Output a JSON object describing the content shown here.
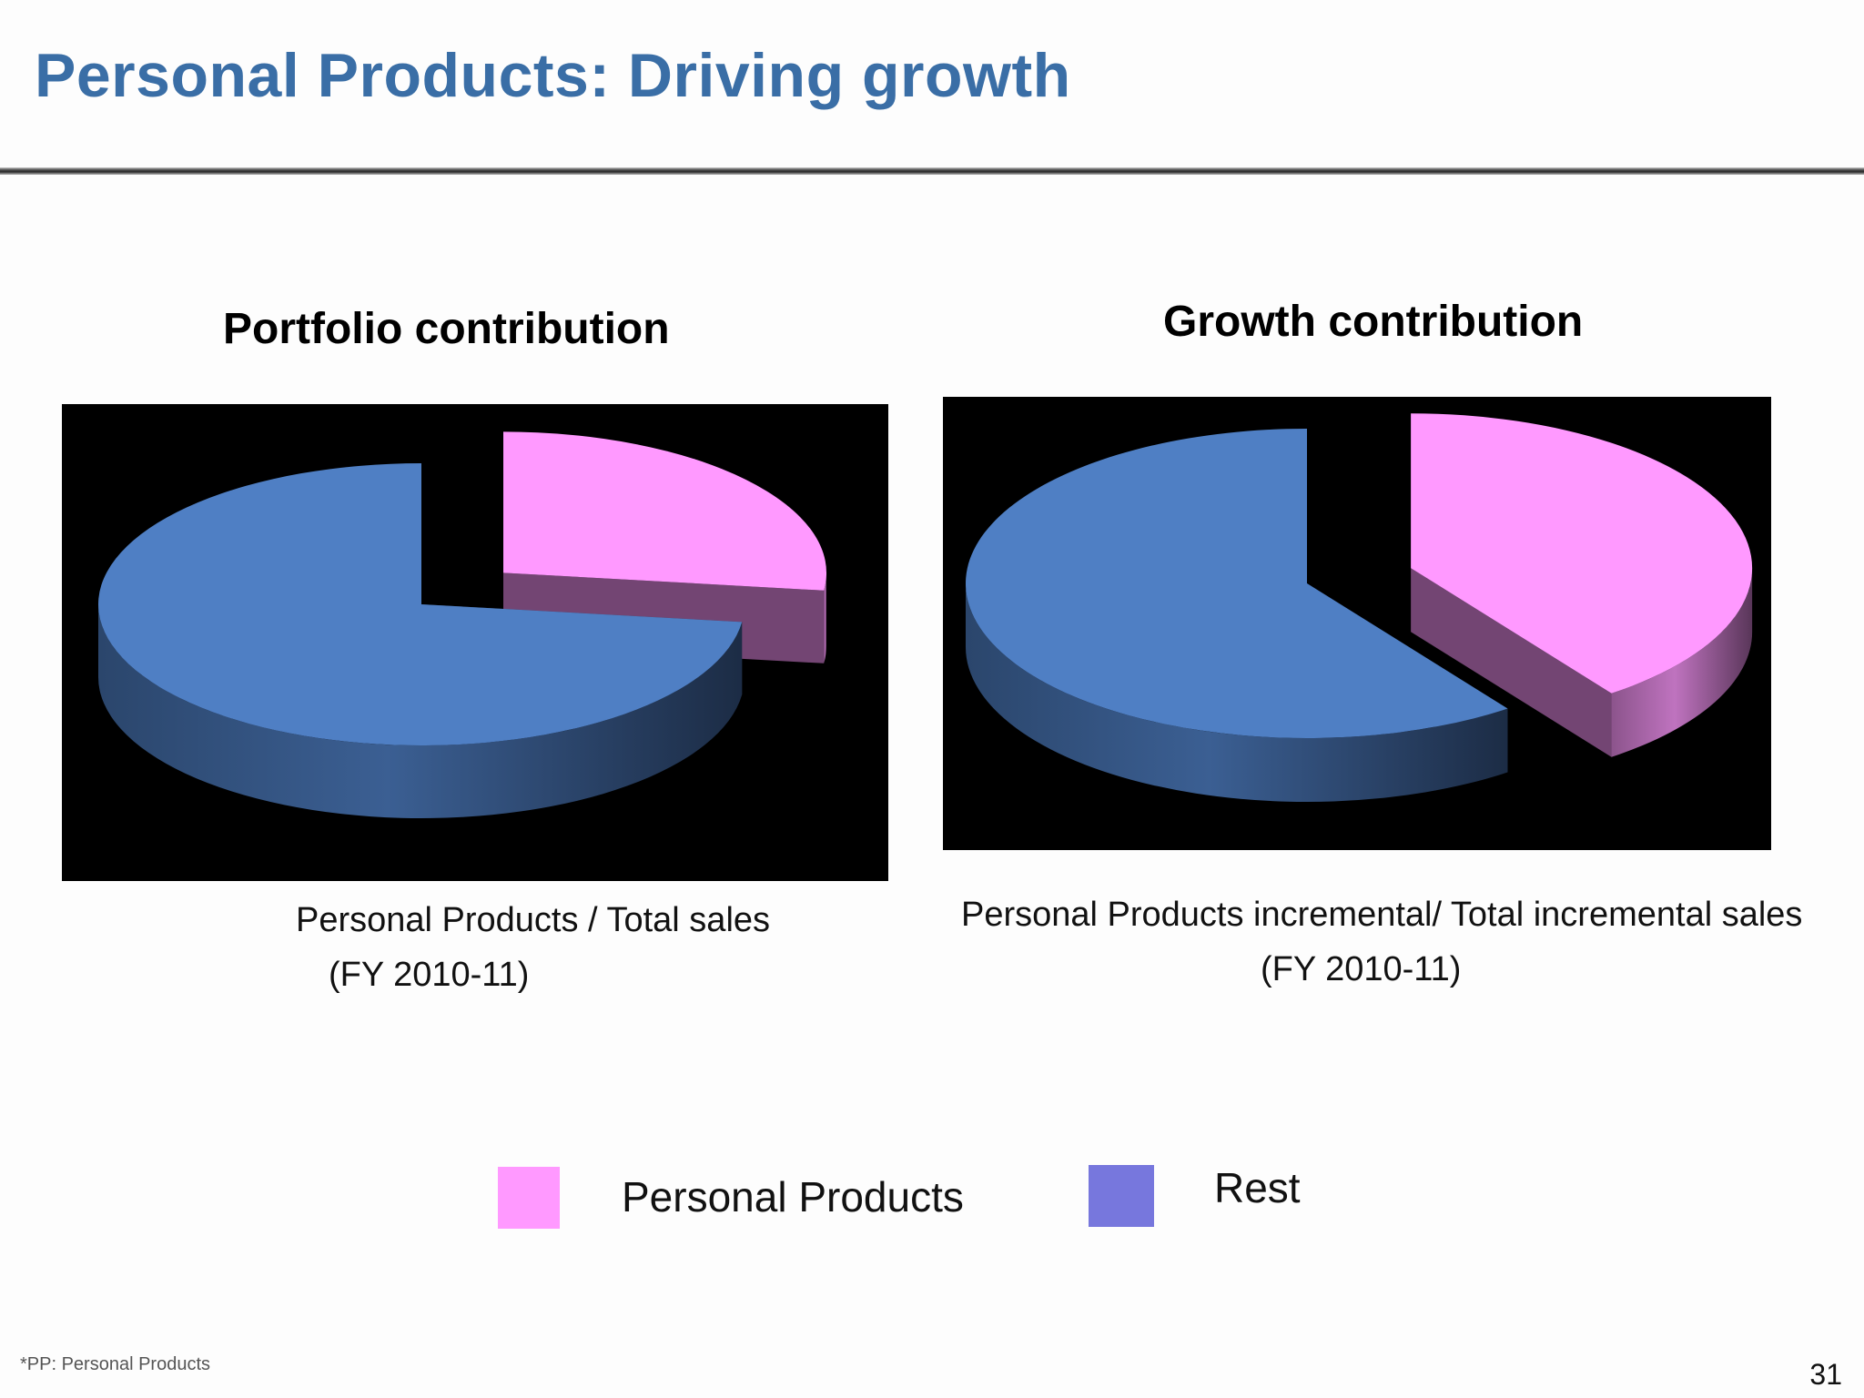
{
  "slide": {
    "title": "Personal Products: Driving growth",
    "footnote": "*PP: Personal Products",
    "page_number": "31"
  },
  "legend": {
    "items": [
      {
        "label": "Personal Products",
        "color": "#ff99ff"
      },
      {
        "label": "Rest",
        "color": "#7777dd"
      }
    ]
  },
  "chart_data": [
    {
      "type": "pie",
      "title": "Portfolio contribution",
      "caption_line1": "Personal Products / Total sales",
      "caption_line2": "(FY 2010-11)",
      "categories": [
        "Personal Products",
        "Rest"
      ],
      "values": [
        27,
        73
      ],
      "colors": [
        "#ff99ff",
        "#4f7fc4"
      ],
      "style": "3d-exploded",
      "background": "#000000"
    },
    {
      "type": "pie",
      "title": "Growth contribution",
      "caption_line1": "Personal Products incremental/ Total incremental sales",
      "caption_line2": "(FY 2010-11)",
      "categories": [
        "Personal Products",
        "Rest"
      ],
      "values": [
        40,
        60
      ],
      "colors": [
        "#ff99ff",
        "#4f7fc4"
      ],
      "style": "3d-exploded",
      "background": "#000000"
    }
  ]
}
